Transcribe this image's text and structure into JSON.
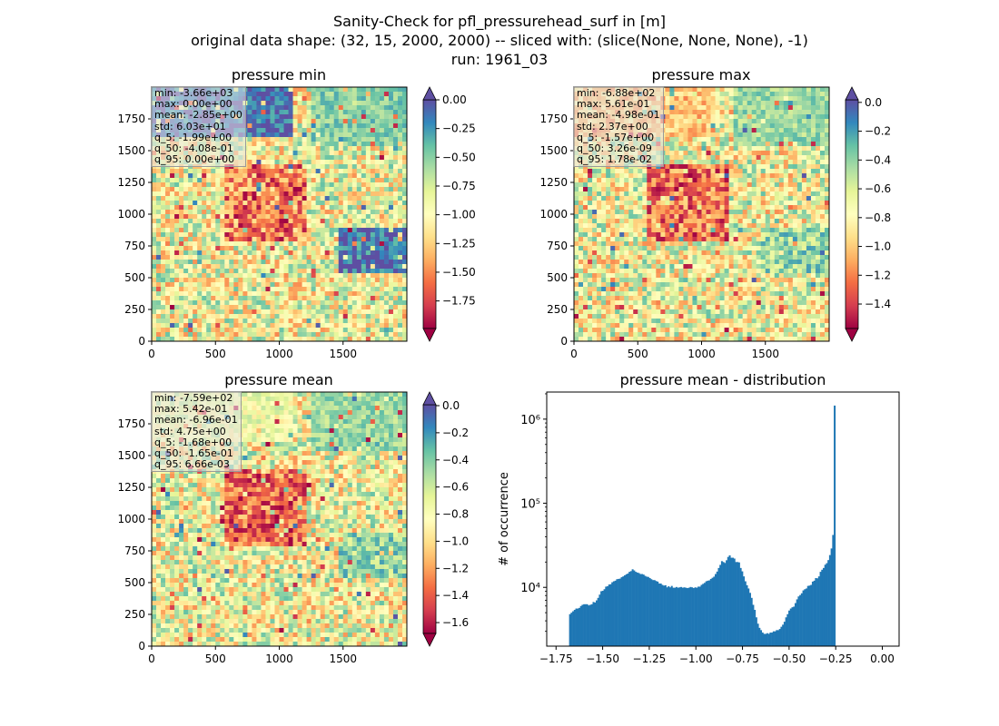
{
  "suptitle": {
    "line1": "Sanity-Check for pfl_pressurehead_surf in [m]",
    "line2": "original data shape: (32, 15, 2000, 2000) -- sliced with: (slice(None, None, None), -1)",
    "line3": "run: 1961_03"
  },
  "colors": {
    "colormap": "Spectral",
    "spectral_stops": [
      "#9e0142",
      "#d53e4f",
      "#f46d43",
      "#fdae61",
      "#fee08b",
      "#ffffbf",
      "#e6f598",
      "#abdda4",
      "#66c2a5",
      "#3288bd",
      "#5e4fa2"
    ],
    "hist_bar": "#1f77b4"
  },
  "chart_data": [
    {
      "type": "heatmap",
      "title": "pressure min",
      "colormap": "Spectral",
      "extend": "both",
      "x_ticks": [
        "0",
        "500",
        "1000",
        "1500"
      ],
      "y_ticks": [
        "0",
        "250",
        "500",
        "750",
        "1000",
        "1250",
        "1500",
        "1750"
      ],
      "xlim": [
        0,
        2000
      ],
      "ylim": [
        0,
        2000
      ],
      "colorbar_range": [
        -1.99,
        0.0
      ],
      "colorbar_ticks": [
        "0.00",
        "−0.25",
        "−0.50",
        "−0.75",
        "−1.00",
        "−1.25",
        "−1.50",
        "−1.75"
      ],
      "stats": [
        "min: -3.66e+03",
        "max: 0.00e+00",
        "mean: -2.85e+00",
        "std: 6.03e+01",
        "q_5: -1.99e+00",
        "q_50: -4.08e-01",
        "q_95: 0.00e+00"
      ]
    },
    {
      "type": "heatmap",
      "title": "pressure max",
      "colormap": "Spectral",
      "extend": "both",
      "x_ticks": [
        "0",
        "500",
        "1000",
        "1500"
      ],
      "y_ticks": [
        "0",
        "250",
        "500",
        "750",
        "1000",
        "1250",
        "1500",
        "1750"
      ],
      "xlim": [
        0,
        2000
      ],
      "ylim": [
        0,
        2000
      ],
      "colorbar_range": [
        -1.57,
        0.0178
      ],
      "colorbar_ticks": [
        "0.0",
        "−0.2",
        "−0.4",
        "−0.6",
        "−0.8",
        "−1.0",
        "−1.2",
        "−1.4"
      ],
      "stats": [
        "min: -6.88e+02",
        "max: 5.61e-01",
        "mean: -4.98e-01",
        "std: 2.37e+00",
        "q_5: -1.57e+00",
        "q_50: 3.26e-09",
        "q_95: 1.78e-02"
      ]
    },
    {
      "type": "heatmap",
      "title": "pressure mean",
      "colormap": "Spectral",
      "extend": "both",
      "x_ticks": [
        "0",
        "500",
        "1000",
        "1500"
      ],
      "y_ticks": [
        "0",
        "250",
        "500",
        "750",
        "1000",
        "1250",
        "1500",
        "1750"
      ],
      "xlim": [
        0,
        2000
      ],
      "ylim": [
        0,
        2000
      ],
      "colorbar_range": [
        -1.68,
        0.00666
      ],
      "colorbar_ticks": [
        "0.0",
        "−0.2",
        "−0.4",
        "−0.6",
        "−0.8",
        "−1.0",
        "−1.2",
        "−1.4",
        "−1.6"
      ],
      "stats": [
        "min: -7.59e+02",
        "max: 5.42e-01",
        "mean: -6.96e-01",
        "std: 4.75e+00",
        "q_5: -1.68e+00",
        "q_50: -1.65e-01",
        "q_95: 6.66e-03"
      ]
    },
    {
      "type": "bar",
      "title": "pressure mean - distribution",
      "ylabel": "# of occurrence",
      "yscale": "log",
      "xlim": [
        -1.8,
        0.09
      ],
      "ylim": [
        2000,
        2100000
      ],
      "x_ticks": [
        "−1.75",
        "−1.50",
        "−1.25",
        "−1.00",
        "−0.75",
        "−0.50",
        "−0.25",
        "0.00"
      ],
      "y_ticks": [
        "10⁴",
        "10⁵",
        "10⁶"
      ],
      "bin_start": -1.68,
      "bin_width": 0.0084,
      "counts": [
        4800,
        5000,
        5200,
        5400,
        5600,
        5600,
        5700,
        6000,
        6200,
        6300,
        6300,
        6300,
        6100,
        6200,
        6300,
        6700,
        6600,
        7000,
        7500,
        8200,
        9000,
        9100,
        9500,
        10200,
        10300,
        10800,
        10900,
        11500,
        11800,
        12000,
        12500,
        12600,
        12700,
        13200,
        13500,
        13900,
        14300,
        14600,
        15300,
        15600,
        16400,
        15900,
        15300,
        15000,
        14800,
        14400,
        14400,
        14200,
        13700,
        13400,
        13300,
        12900,
        12500,
        12200,
        12200,
        11900,
        11700,
        11100,
        11100,
        10700,
        10500,
        10600,
        10000,
        10300,
        10000,
        10400,
        9900,
        9900,
        10100,
        9900,
        10000,
        10100,
        9900,
        10000,
        9900,
        9800,
        9900,
        10100,
        10000,
        9800,
        10000,
        9900,
        10200,
        10200,
        10700,
        11000,
        11300,
        11800,
        12000,
        12100,
        12600,
        13000,
        13400,
        14400,
        15400,
        17000,
        18500,
        20500,
        20000,
        19500,
        21000,
        23000,
        24000,
        22500,
        22500,
        22000,
        20000,
        20000,
        19800,
        17000,
        15500,
        13500,
        11800,
        10600,
        9700,
        8600,
        7500,
        6200,
        5400,
        4400,
        3700,
        3300,
        3100,
        2900,
        2800,
        2800,
        2850,
        2800,
        2900,
        2900,
        3000,
        3000,
        3100,
        3100,
        3200,
        3400,
        3600,
        3900,
        4400,
        4800,
        5300,
        5600,
        5800,
        5900,
        6500,
        7200,
        7800,
        8100,
        8500,
        9200,
        9500,
        9700,
        10400,
        10500,
        10700,
        11700,
        12000,
        12900,
        12800,
        13500,
        15300,
        16200,
        17000,
        18600,
        19400,
        21100,
        24200,
        29000,
        42000,
        1450000
      ]
    }
  ]
}
